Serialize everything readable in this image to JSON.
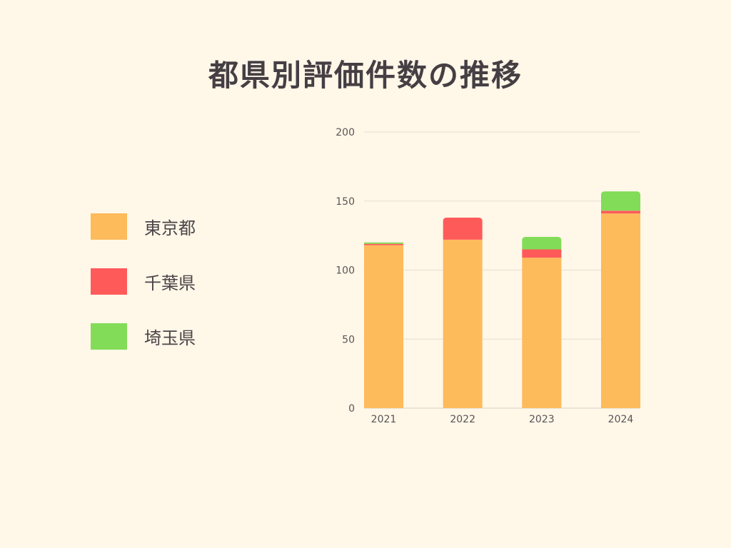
{
  "chart_data": {
    "type": "bar",
    "stacked": true,
    "title": "都県別評価件数の推移",
    "categories": [
      "2021",
      "2022",
      "2023",
      "2024"
    ],
    "series": [
      {
        "name": "東京都",
        "color": "#fdbb5c",
        "values": [
          118,
          122,
          109,
          141
        ]
      },
      {
        "name": "千葉県",
        "color": "#ff5a5a",
        "values": [
          1,
          16,
          6,
          2
        ]
      },
      {
        "name": "埼玉県",
        "color": "#82dc58",
        "values": [
          1,
          0,
          9,
          14
        ]
      }
    ],
    "ylim": [
      0,
      200
    ],
    "yticks": [
      "0",
      "50",
      "100",
      "150",
      "200"
    ],
    "grid": true,
    "legend_position": "left"
  }
}
